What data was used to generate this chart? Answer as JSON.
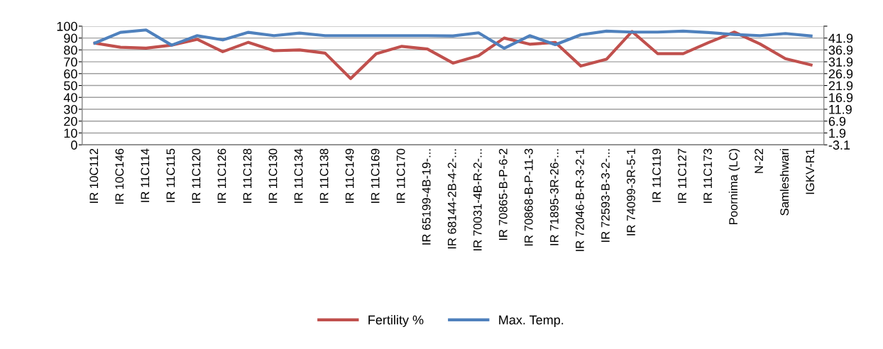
{
  "chart_data": {
    "type": "line",
    "categories": [
      "IR 10C112",
      "IR 10C146",
      "IR 11C114",
      "IR 11C115",
      "IR 11C120",
      "IR 11C126",
      "IR 11C128",
      "IR 11C130",
      "IR 11C134",
      "IR 11C138",
      "IR 11C149",
      "IR 11C169",
      "IR 11C170",
      "IR 65199-4B-19-...",
      "IR 68144-2B-4-2-...",
      "IR 70031-4B-R-2-...",
      "IR 70865-B-P-6-2",
      "IR 70868-B-P-11-3",
      "IR 71895-3R-26-...",
      "IR 72046-B-R-3-2-1",
      "IR 72593-B-3-2-...",
      "IR 74099-3R-5-1",
      "IR 11C119",
      "IR 11C127",
      "IR 11C173",
      "Poornima (LC)",
      "N-22",
      "Samleshwari",
      "IGKV-R1"
    ],
    "series": [
      {
        "name": "Fertility %",
        "color": "#c0504d",
        "values": [
          85.7,
          82.2,
          81.5,
          84,
          88.9,
          78.5,
          86.4,
          79.3,
          80,
          77.3,
          55.8,
          76.8,
          83,
          80.7,
          68.9,
          75.1,
          90,
          84.8,
          86.3,
          66.4,
          72.1,
          95.5,
          76.9,
          76.9,
          86.3,
          95,
          85.1,
          72.6,
          67.4
        ]
      },
      {
        "name": "Max. Temp.",
        "color": "#4f81bd",
        "axis": "y2",
        "values": [
          39.8,
          44.3,
          45.3,
          38.9,
          42.9,
          41.1,
          44.3,
          42.9,
          44.0,
          42.9,
          42.9,
          42.9,
          42.9,
          42.9,
          42.8,
          44.1,
          37.6,
          42.9,
          39.1,
          43.3,
          44.8,
          44.4,
          44.4,
          44.8,
          44.2,
          43.4,
          42.9,
          43.8,
          42.8
        ]
      }
    ],
    "ylim": [
      0,
      100
    ],
    "yticks": [
      0,
      10,
      20,
      30,
      40,
      50,
      60,
      70,
      80,
      90,
      100
    ],
    "y2lim": [
      -3.1,
      46.9
    ],
    "y2ticks": [
      {
        "value": -3.1,
        "label": "-3.1"
      },
      {
        "value": 1.9,
        "label": "1.9"
      },
      {
        "value": 6.9,
        "label": "6.9"
      },
      {
        "value": 11.9,
        "label": "11.9"
      },
      {
        "value": 16.9,
        "label": "16.9"
      },
      {
        "value": 21.9,
        "label": "21.9"
      },
      {
        "value": 26.9,
        "label": "26.9"
      },
      {
        "value": 31.9,
        "label": "31.9"
      },
      {
        "value": 36.9,
        "label": "36.9"
      },
      {
        "value": 41.9,
        "label": "41.9"
      },
      {
        "value": 46.9,
        "label": null
      }
    ],
    "grid": "y",
    "legend": "bottom",
    "marker": "none",
    "line_style": "solid"
  }
}
